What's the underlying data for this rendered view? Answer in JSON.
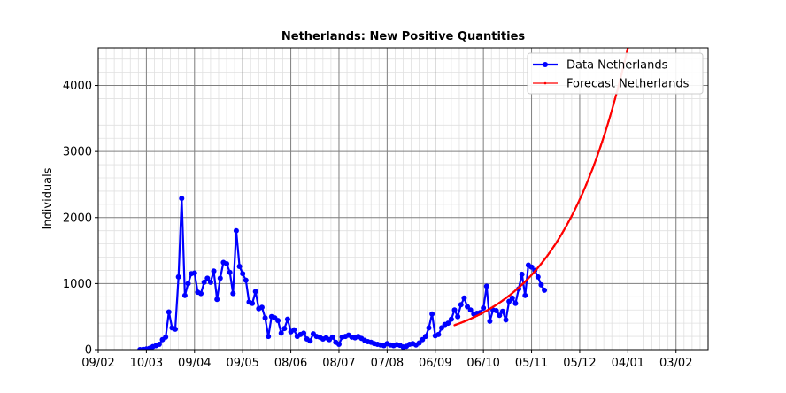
{
  "chart_data": {
    "type": "line",
    "title": "Netherlands: New Positive Quantities",
    "xlabel": "",
    "ylabel": "Individuals",
    "x_ticks": [
      "09/02",
      "10/03",
      "09/04",
      "09/05",
      "08/06",
      "08/07",
      "07/08",
      "06/09",
      "06/10",
      "05/11",
      "05/12",
      "04/01",
      "03/02"
    ],
    "ylim": [
      0,
      4570
    ],
    "y_ticks": [
      0,
      1000,
      2000,
      3000,
      4000
    ],
    "grid": true,
    "legend_position": "top-right",
    "series": [
      {
        "name": "Data Netherlands",
        "color": "#0000ff",
        "marker": "circle",
        "x": [
          26,
          28,
          30,
          32,
          34,
          36,
          38,
          40,
          42,
          44,
          46,
          48,
          50,
          52,
          54,
          56,
          58,
          60,
          62,
          64,
          66,
          68,
          70,
          72,
          74,
          76,
          78,
          80,
          82,
          84,
          86,
          88,
          90,
          92,
          94,
          96,
          98,
          100,
          102,
          104,
          106,
          108,
          110,
          112,
          114,
          116,
          118,
          120,
          122,
          124,
          126,
          128,
          130,
          132,
          134,
          136,
          138,
          140,
          142,
          144,
          146,
          148,
          150,
          152,
          154,
          156,
          158,
          160,
          162,
          164,
          166,
          168,
          170,
          172,
          174,
          176,
          178,
          180,
          182,
          184,
          186,
          188,
          190,
          192,
          194,
          196,
          198,
          200,
          202,
          204,
          206,
          208,
          210,
          212,
          214
        ],
        "y": [
          0,
          3,
          10,
          20,
          45,
          60,
          80,
          150,
          190,
          570,
          330,
          310,
          1100,
          2290,
          820,
          1000,
          1150,
          1160,
          870,
          850,
          1020,
          1080,
          1020,
          1190,
          760,
          1080,
          1320,
          1300,
          1170,
          850,
          1800,
          1260,
          1150,
          1050,
          720,
          700,
          880,
          620,
          640,
          480,
          200,
          500,
          480,
          440,
          250,
          320,
          460,
          270,
          300,
          200,
          230,
          250,
          160,
          130,
          240,
          200,
          190,
          160,
          180,
          150,
          190,
          110,
          80,
          190,
          200,
          220,
          190,
          180,
          200,
          170,
          140,
          120,
          110,
          90,
          80,
          70,
          60,
          90,
          70,
          60,
          75,
          65,
          40,
          50,
          80,
          90,
          70,
          100,
          150,
          200,
          330,
          540,
          210,
          230,
          330
        ],
        "x_more": [
          216,
          218,
          220,
          222,
          224,
          226,
          228,
          230,
          232,
          234,
          236,
          238,
          240,
          242,
          244,
          246,
          248,
          250,
          252,
          254,
          256,
          258,
          260,
          262,
          264,
          266,
          268,
          270,
          272,
          274,
          276,
          278
        ],
        "y_more": [
          380,
          400,
          460,
          600,
          500,
          680,
          780,
          650,
          600,
          540,
          550,
          560,
          630,
          960,
          430,
          600,
          590,
          520,
          580,
          450,
          730,
          780,
          700,
          920,
          1140,
          820,
          1280,
          1250,
          1200,
          1100,
          980,
          900
        ]
      },
      {
        "name": "Forecast Netherlands",
        "color": "#ff0000",
        "marker": "point",
        "x_start": 222,
        "x_end": 330,
        "y_start": 370,
        "y_at_end": 4570
      }
    ]
  }
}
